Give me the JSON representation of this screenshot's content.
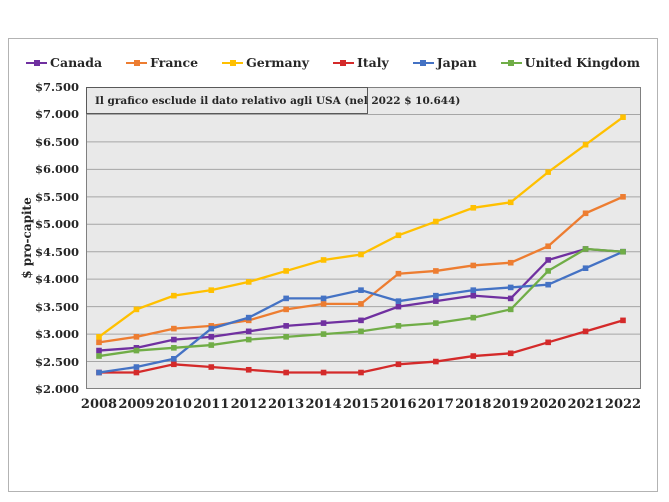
{
  "figure": {
    "ylabel": "$ pro-capite",
    "annotation": "Il grafico esclude il dato relativo agli USA (nel 2022 $ 10.644)"
  },
  "axes": {
    "y_tick_labels": [
      "$7.500",
      "$7.000",
      "$6.500",
      "$6.000",
      "$5.500",
      "$5.000",
      "$4.500",
      "$4.000",
      "$3.500",
      "$3.000",
      "$2.500",
      "$2.000"
    ],
    "x_tick_labels": [
      "2008",
      "2009",
      "2010",
      "2011",
      "2012",
      "2013",
      "2014",
      "2015",
      "2016",
      "2017",
      "2018",
      "2019",
      "2020",
      "2021",
      "2022"
    ]
  },
  "style": {
    "plot_bg": "#e9e9e9",
    "grid_color": "#a6a6a6",
    "plot_border_color": "#808080",
    "text_color": "#262626"
  },
  "chart_data": {
    "type": "line",
    "title": "",
    "xlabel": "",
    "ylabel": "$ pro-capite",
    "x": [
      2008,
      2009,
      2010,
      2011,
      2012,
      2013,
      2014,
      2015,
      2016,
      2017,
      2018,
      2019,
      2020,
      2021,
      2022
    ],
    "ylim": [
      2000,
      7500
    ],
    "y_tick_step": 500,
    "grid": true,
    "legend_position": "top",
    "annotation": "Il grafico esclude il dato relativo agli USA (nel 2022 $ 10.644)",
    "series": [
      {
        "name": "Canada",
        "color": "#7030A0",
        "values": [
          2700,
          2750,
          2900,
          2950,
          3050,
          3150,
          3200,
          3250,
          3500,
          3600,
          3700,
          3650,
          4350,
          4550,
          4500
        ]
      },
      {
        "name": "France",
        "color": "#ED7D31",
        "values": [
          2850,
          2950,
          3100,
          3150,
          3250,
          3450,
          3550,
          3550,
          4100,
          4150,
          4250,
          4300,
          4600,
          5200,
          5500
        ]
      },
      {
        "name": "Germany",
        "color": "#FFC000",
        "values": [
          2950,
          3450,
          3700,
          3800,
          3950,
          4150,
          4350,
          4450,
          4800,
          5050,
          5300,
          5400,
          5950,
          6450,
          6950
        ]
      },
      {
        "name": "Italy",
        "color": "#D42A2A",
        "values": [
          2300,
          2300,
          2450,
          2400,
          2350,
          2300,
          2300,
          2300,
          2450,
          2500,
          2600,
          2650,
          2850,
          3050,
          3250
        ]
      },
      {
        "name": "Japan",
        "color": "#4472C4",
        "values": [
          2300,
          2400,
          2550,
          3100,
          3300,
          3650,
          3650,
          3800,
          3600,
          3700,
          3800,
          3850,
          3900,
          4200,
          4500
        ]
      },
      {
        "name": "United Kingdom",
        "color": "#70AD47",
        "values": [
          2600,
          2700,
          2750,
          2800,
          2900,
          2950,
          3000,
          3050,
          3150,
          3200,
          3300,
          3450,
          4150,
          4550,
          4500
        ]
      }
    ]
  }
}
